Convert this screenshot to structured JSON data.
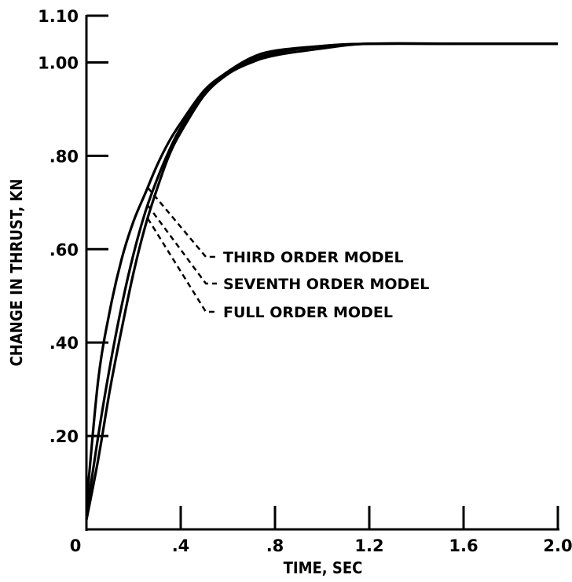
{
  "chart_data": {
    "type": "line",
    "title": "",
    "xlabel": "TIME, SEC",
    "ylabel": "CHANGE IN THRUST, KN",
    "xlim": [
      0,
      2.0
    ],
    "ylim": [
      0,
      1.1
    ],
    "x_ticks": [
      0,
      0.4,
      0.8,
      1.2,
      1.6,
      2.0
    ],
    "x_tick_labels": [
      "0",
      ".4",
      ".8",
      "1.2",
      "1.6",
      "2.0"
    ],
    "y_ticks": [
      0.2,
      0.4,
      0.6,
      0.8,
      1.0,
      1.1
    ],
    "y_tick_labels": [
      ".20",
      ".40",
      ".60",
      ".80",
      "1.00",
      "1.10"
    ],
    "grid": false,
    "legend": "none",
    "series": [
      {
        "name": "THIRD ORDER MODEL",
        "x": [
          0,
          0.05,
          0.1,
          0.15,
          0.2,
          0.25,
          0.3,
          0.35,
          0.4,
          0.5,
          0.6,
          0.7,
          0.8,
          1.0,
          1.2,
          1.6,
          2.0
        ],
        "y": [
          0.05,
          0.32,
          0.47,
          0.58,
          0.66,
          0.72,
          0.78,
          0.83,
          0.87,
          0.94,
          0.98,
          1.01,
          1.025,
          1.035,
          1.04,
          1.04,
          1.04
        ]
      },
      {
        "name": "SEVENTH ORDER MODEL",
        "x": [
          0,
          0.05,
          0.1,
          0.15,
          0.2,
          0.25,
          0.3,
          0.35,
          0.4,
          0.5,
          0.6,
          0.7,
          0.8,
          1.0,
          1.2,
          1.6,
          2.0
        ],
        "y": [
          0.03,
          0.2,
          0.35,
          0.48,
          0.59,
          0.68,
          0.75,
          0.81,
          0.86,
          0.935,
          0.98,
          1.005,
          1.02,
          1.035,
          1.04,
          1.04,
          1.04
        ]
      },
      {
        "name": "FULL ORDER MODEL",
        "x": [
          0,
          0.05,
          0.1,
          0.15,
          0.2,
          0.25,
          0.3,
          0.35,
          0.4,
          0.5,
          0.6,
          0.7,
          0.8,
          1.0,
          1.2,
          1.6,
          2.0
        ],
        "y": [
          0.02,
          0.15,
          0.3,
          0.43,
          0.55,
          0.65,
          0.73,
          0.8,
          0.85,
          0.93,
          0.975,
          1.0,
          1.015,
          1.03,
          1.04,
          1.04,
          1.04
        ]
      }
    ],
    "annotations": [
      {
        "text": "THIRD ORDER MODEL",
        "series": 0,
        "at_x": 0.26
      },
      {
        "text": "SEVENTH ORDER MODEL",
        "series": 1,
        "at_x": 0.26
      },
      {
        "text": "FULL ORDER MODEL",
        "series": 2,
        "at_x": 0.26
      }
    ]
  }
}
